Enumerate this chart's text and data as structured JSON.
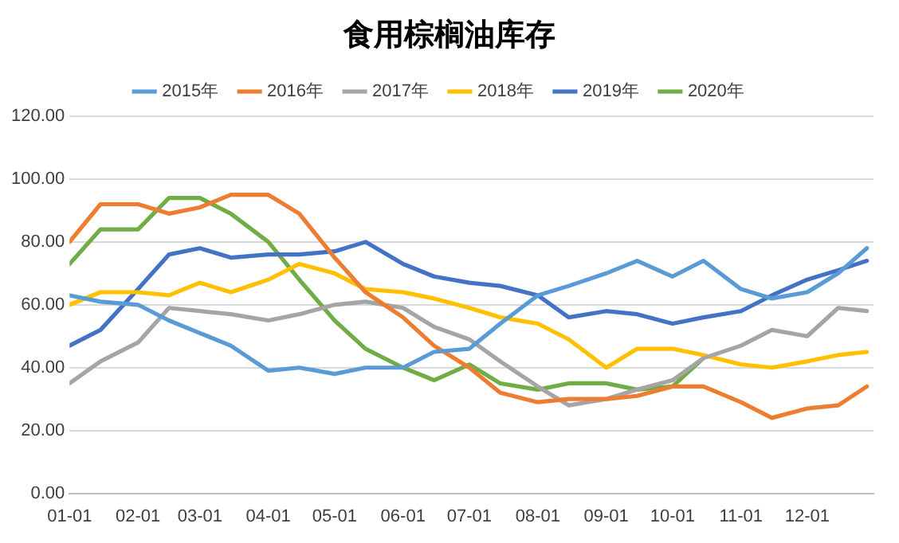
{
  "chart_data": {
    "type": "line",
    "title": "食用棕榈油库存",
    "x": [
      "--01-01",
      "--01-15",
      "--02-01",
      "--02-15",
      "--03-01",
      "--03-15",
      "--04-01",
      "--04-15",
      "--05-01",
      "--05-15",
      "--06-01",
      "--06-15",
      "--07-01",
      "--07-15",
      "--08-01",
      "--08-15",
      "--09-01",
      "--09-15",
      "--10-01",
      "--10-15",
      "--11-01",
      "--11-15",
      "--12-01",
      "--12-15",
      "--12-28"
    ],
    "series": [
      {
        "name": "2015年",
        "color": "#5b9bd5",
        "values": [
          63,
          61,
          60,
          55,
          51,
          47,
          39,
          40,
          38,
          40,
          40,
          45,
          46,
          54,
          63,
          66,
          70,
          74,
          69,
          74,
          65,
          62,
          64,
          70,
          78
        ]
      },
      {
        "name": "2016年",
        "color": "#ed7d31",
        "values": [
          80,
          92,
          92,
          89,
          91,
          95,
          95,
          89,
          75,
          64,
          56,
          47,
          40,
          32,
          29,
          30,
          30,
          31,
          34,
          34,
          29,
          24,
          27,
          28,
          34
        ]
      },
      {
        "name": "2017年",
        "color": "#a5a5a5",
        "values": [
          35,
          42,
          48,
          59,
          58,
          57,
          55,
          57,
          60,
          61,
          59,
          53,
          49,
          42,
          34,
          28,
          30,
          33,
          36,
          43,
          47,
          52,
          50,
          59,
          58
        ]
      },
      {
        "name": "2018年",
        "color": "#ffc000",
        "values": [
          60,
          64,
          64,
          63,
          67,
          64,
          68,
          73,
          70,
          65,
          64,
          62,
          59,
          56,
          54,
          49,
          40,
          46,
          46,
          44,
          41,
          40,
          42,
          44,
          45
        ]
      },
      {
        "name": "2019年",
        "color": "#4472c4",
        "values": [
          47,
          52,
          65,
          76,
          78,
          75,
          76,
          76,
          77,
          80,
          73,
          69,
          67,
          66,
          63,
          56,
          58,
          57,
          54,
          56,
          58,
          63,
          68,
          71,
          74
        ]
      },
      {
        "name": "2020年",
        "color": "#70ad47",
        "values": [
          73,
          84,
          84,
          94,
          94,
          89,
          80,
          68,
          55,
          46,
          40,
          36,
          41,
          35,
          33,
          35,
          35,
          33,
          34,
          43,
          null,
          null,
          null,
          null,
          null
        ]
      }
    ],
    "xlim": [
      "--01-01",
      "--12-31"
    ],
    "xticks": [
      {
        "value": "--01-01",
        "label": "01-01"
      },
      {
        "value": "--02-01",
        "label": "02-01"
      },
      {
        "value": "--03-01",
        "label": "03-01"
      },
      {
        "value": "--04-01",
        "label": "04-01"
      },
      {
        "value": "--05-01",
        "label": "05-01"
      },
      {
        "value": "--06-01",
        "label": "06-01"
      },
      {
        "value": "--07-01",
        "label": "07-01"
      },
      {
        "value": "--08-01",
        "label": "08-01"
      },
      {
        "value": "--09-01",
        "label": "09-01"
      },
      {
        "value": "--10-01",
        "label": "10-01"
      },
      {
        "value": "--11-01",
        "label": "11-01"
      },
      {
        "value": "--12-01",
        "label": "12-01"
      }
    ],
    "ylim": [
      0,
      120
    ],
    "yticks": [
      {
        "value": 0,
        "label": "0.00"
      },
      {
        "value": 20,
        "label": "20.00"
      },
      {
        "value": 40,
        "label": "40.00"
      },
      {
        "value": 60,
        "label": "60.00"
      },
      {
        "value": 80,
        "label": "80.00"
      },
      {
        "value": 100,
        "label": "100.00"
      },
      {
        "value": 120,
        "label": "120.00"
      }
    ],
    "grid": "y",
    "legend": "top",
    "marker": "none",
    "line_style": "solid"
  }
}
